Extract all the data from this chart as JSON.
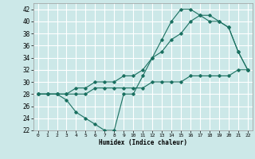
{
  "xlabel": "Humidex (Indice chaleur)",
  "bg_color": "#cce8e8",
  "grid_color": "#ffffff",
  "line_color": "#1a7060",
  "xlim": [
    -0.5,
    22.5
  ],
  "ylim": [
    22,
    43
  ],
  "xticks": [
    0,
    1,
    2,
    3,
    4,
    5,
    6,
    7,
    8,
    9,
    10,
    11,
    12,
    13,
    14,
    15,
    16,
    17,
    18,
    19,
    20,
    21,
    22
  ],
  "yticks": [
    22,
    24,
    26,
    28,
    30,
    32,
    34,
    36,
    38,
    40,
    42
  ],
  "line1_x": [
    0,
    1,
    2,
    3,
    4,
    5,
    6,
    7,
    8,
    9,
    10,
    11,
    12,
    13,
    14,
    15,
    16,
    17,
    18,
    19,
    20,
    21,
    22
  ],
  "line1_y": [
    28,
    28,
    28,
    28,
    28,
    28,
    29,
    29,
    29,
    29,
    29,
    29,
    30,
    30,
    30,
    30,
    31,
    31,
    31,
    31,
    31,
    32,
    32
  ],
  "line2_x": [
    0,
    1,
    2,
    3,
    4,
    5,
    6,
    7,
    8,
    9,
    10,
    11,
    12,
    13,
    14,
    15,
    16,
    17,
    18,
    19,
    20,
    21,
    22
  ],
  "line2_y": [
    28,
    28,
    28,
    27,
    25,
    24,
    23,
    22,
    22,
    28,
    28,
    31,
    34,
    37,
    40,
    42,
    42,
    41,
    40,
    40,
    39,
    35,
    32
  ],
  "line3_x": [
    0,
    1,
    2,
    3,
    4,
    5,
    6,
    7,
    8,
    9,
    10,
    11,
    12,
    13,
    14,
    15,
    16,
    17,
    18,
    19,
    20,
    21,
    22
  ],
  "line3_y": [
    28,
    28,
    28,
    28,
    29,
    29,
    30,
    30,
    30,
    31,
    31,
    32,
    34,
    35,
    37,
    38,
    40,
    41,
    41,
    40,
    39,
    35,
    32
  ]
}
